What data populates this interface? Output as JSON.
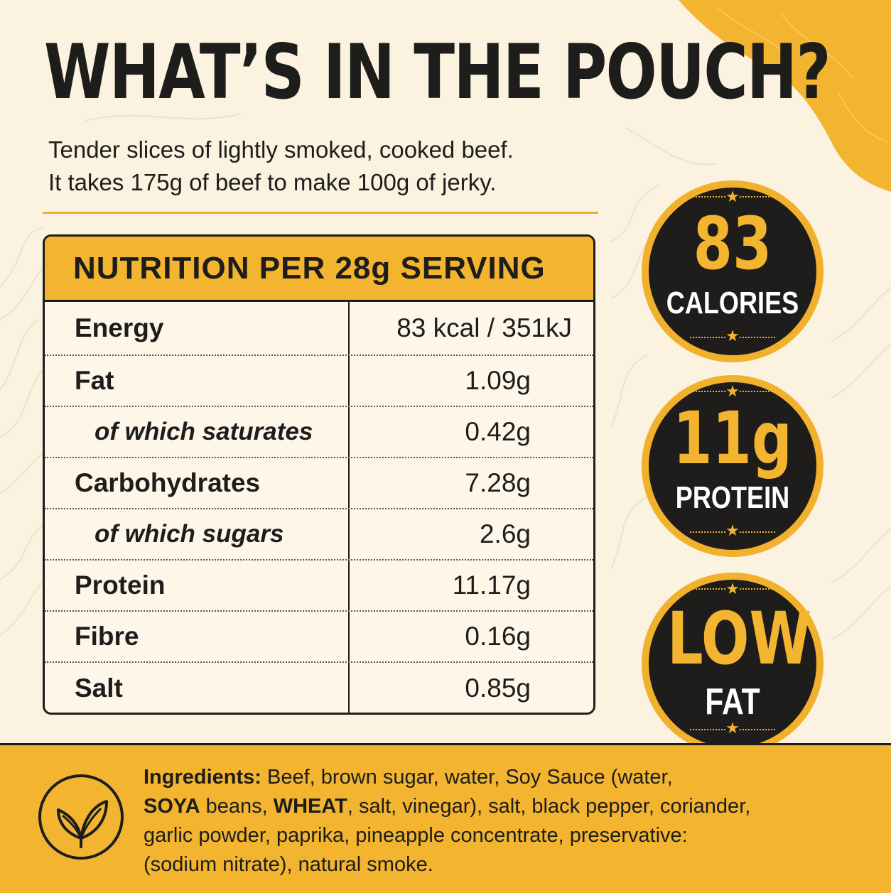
{
  "title": "WHAT’S IN THE POUCH?",
  "intro": {
    "line1": "Tender slices of lightly smoked, cooked beef.",
    "line2": "It takes 175g of beef to make 100g of jerky."
  },
  "nutrition": {
    "heading": "NUTRITION PER 28g SERVING",
    "rows": [
      {
        "label": "Energy",
        "value": "83 kcal / 351kJ"
      },
      {
        "label": "Fat",
        "value": "1.09g"
      },
      {
        "label": "of which saturates",
        "value": "0.42g"
      },
      {
        "label": "Carbohydrates",
        "value": "7.28g"
      },
      {
        "label": "of which sugars",
        "value": "2.6g"
      },
      {
        "label": "Protein",
        "value": "11.17g"
      },
      {
        "label": "Fibre",
        "value": "0.16g"
      },
      {
        "label": "Salt",
        "value": "0.85g"
      }
    ]
  },
  "badges": [
    {
      "big": "83",
      "small": "CALORIES"
    },
    {
      "big": "11g",
      "small": "PROTEIN"
    },
    {
      "big": "LOW",
      "small": "FAT"
    }
  ],
  "ingredients": {
    "heading": "Ingredients:",
    "line1_rest": " Beef, brown sugar, water, Soy Sauce (water,",
    "soya": "SOYA",
    "line2_mid": " beans, ",
    "wheat": "WHEAT",
    "line2_rest": ", salt, vinegar), salt, black pepper, coriander,",
    "line3": "garlic powder, paprika, pineapple concentrate, preservative:",
    "line4": "(sodium nitrate), natural smoke."
  },
  "icons": {
    "ingredients_icon": "leaf-icon",
    "badge_star": "star-icon"
  },
  "colors": {
    "accent": "#f3b42f",
    "dark": "#1e1d1b",
    "background": "#fbf2df"
  }
}
